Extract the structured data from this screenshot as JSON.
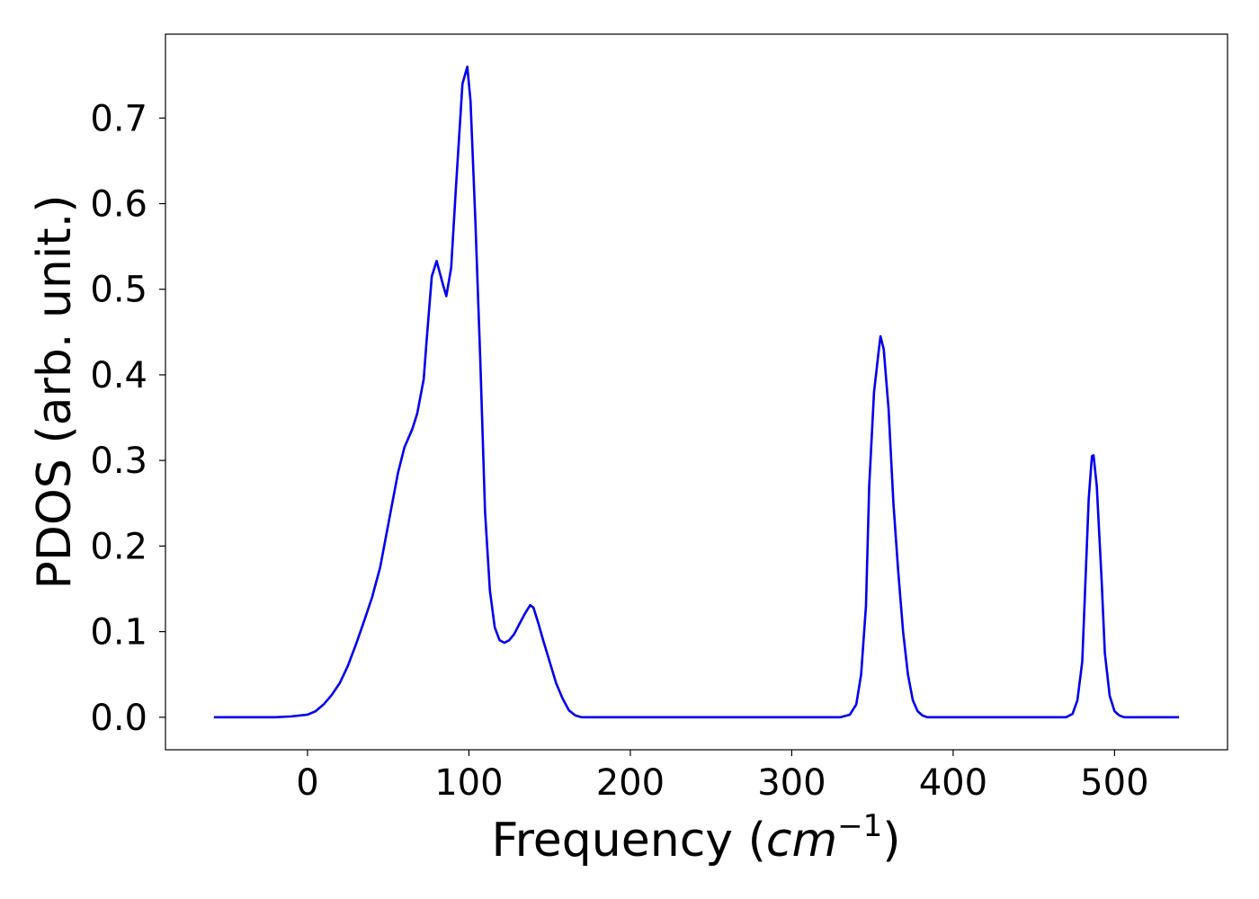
{
  "chart_data": {
    "type": "line",
    "xlabel": "Frequency (",
    "xlabel_math": "cm",
    "xlabel_exponent": "−1",
    "xlabel_close": ")",
    "ylabel": "PDOS (arb. unit.)",
    "xlim": [
      -88,
      570
    ],
    "ylim": [
      -0.038,
      0.798
    ],
    "xticks": [
      0,
      100,
      200,
      300,
      400,
      500
    ],
    "xtick_labels": [
      "0",
      "100",
      "200",
      "300",
      "400",
      "500"
    ],
    "yticks": [
      0.0,
      0.1,
      0.2,
      0.3,
      0.4,
      0.5,
      0.6,
      0.7
    ],
    "ytick_labels": [
      "0.0",
      "0.1",
      "0.2",
      "0.3",
      "0.4",
      "0.5",
      "0.6",
      "0.7"
    ],
    "grid": false,
    "line_color": "#0000ee",
    "series": [
      {
        "x": [
          -58,
          -40,
          -20,
          -10,
          0,
          5,
          10,
          15,
          20,
          25,
          30,
          35,
          40,
          45,
          48,
          52,
          56,
          60,
          65,
          68,
          72,
          74,
          77,
          80,
          84,
          86,
          89,
          92,
          96,
          99,
          101,
          104,
          107,
          110,
          113,
          116,
          119,
          122,
          125,
          128,
          131,
          135,
          138,
          140,
          143,
          146,
          150,
          154,
          158,
          162,
          166,
          170,
          175,
          190,
          250,
          330,
          336,
          340,
          343,
          346,
          348,
          351,
          354,
          355,
          357,
          360,
          363,
          366,
          369,
          372,
          375,
          378,
          381,
          384,
          388,
          400,
          440,
          470,
          474,
          477,
          480,
          482,
          484,
          486,
          487,
          489,
          492,
          494,
          497,
          500,
          503,
          506,
          510,
          540
        ],
        "y": [
          0.0,
          0.0,
          0.0,
          0.001,
          0.003,
          0.007,
          0.015,
          0.026,
          0.04,
          0.06,
          0.085,
          0.112,
          0.14,
          0.175,
          0.205,
          0.245,
          0.285,
          0.315,
          0.337,
          0.355,
          0.395,
          0.445,
          0.515,
          0.533,
          0.505,
          0.492,
          0.525,
          0.62,
          0.74,
          0.76,
          0.72,
          0.58,
          0.42,
          0.24,
          0.148,
          0.105,
          0.09,
          0.087,
          0.09,
          0.097,
          0.108,
          0.122,
          0.131,
          0.128,
          0.11,
          0.09,
          0.065,
          0.04,
          0.022,
          0.008,
          0.002,
          0.0,
          0.0,
          0.0,
          0.0,
          0.0,
          0.003,
          0.015,
          0.05,
          0.13,
          0.27,
          0.38,
          0.43,
          0.445,
          0.43,
          0.36,
          0.25,
          0.17,
          0.1,
          0.05,
          0.02,
          0.007,
          0.002,
          0.0,
          0.0,
          0.0,
          0.0,
          0.0,
          0.004,
          0.02,
          0.065,
          0.16,
          0.255,
          0.305,
          0.306,
          0.27,
          0.16,
          0.075,
          0.025,
          0.007,
          0.002,
          0.0,
          0.0,
          0.0
        ]
      }
    ]
  }
}
